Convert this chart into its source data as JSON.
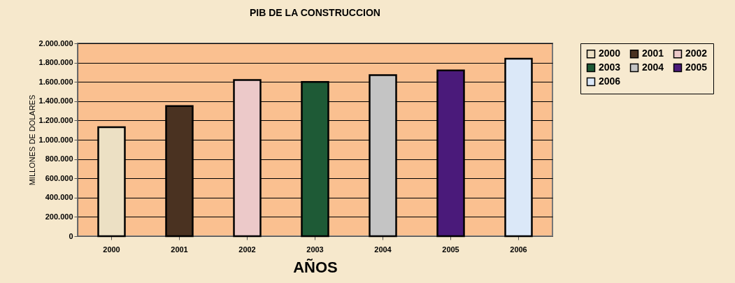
{
  "chart_data": {
    "type": "bar",
    "title": "PIB DE LA CONSTRUCCION",
    "xlabel": "AÑOS",
    "ylabel": "MILLONES DE DOLARES",
    "categories": [
      "2000",
      "2001",
      "2002",
      "2003",
      "2004",
      "2005",
      "2006"
    ],
    "series": [
      {
        "name": "2000",
        "color": "#ece0c4",
        "values": [
          1130000,
          null,
          null,
          null,
          null,
          null,
          null
        ]
      },
      {
        "name": "2001",
        "color": "#4a3221",
        "values": [
          null,
          1350000,
          null,
          null,
          null,
          null,
          null
        ]
      },
      {
        "name": "2002",
        "color": "#ecc9c9",
        "values": [
          null,
          null,
          1620000,
          null,
          null,
          null,
          null
        ]
      },
      {
        "name": "2003",
        "color": "#1e5a36",
        "values": [
          null,
          null,
          null,
          1600000,
          null,
          null,
          null
        ]
      },
      {
        "name": "2004",
        "color": "#c4c4c4",
        "values": [
          null,
          null,
          null,
          null,
          1670000,
          null,
          null
        ]
      },
      {
        "name": "2005",
        "color": "#4a1a7a",
        "values": [
          null,
          null,
          null,
          null,
          null,
          1720000,
          null
        ]
      },
      {
        "name": "2006",
        "color": "#dbe8f8",
        "values": [
          null,
          null,
          null,
          null,
          null,
          null,
          1840000
        ]
      }
    ],
    "ylim": [
      0,
      2000000
    ],
    "yticks": [
      {
        "value": 0,
        "label": "0"
      },
      {
        "value": 200000,
        "label": "200.000"
      },
      {
        "value": 400000,
        "label": "400.000"
      },
      {
        "value": 600000,
        "label": "600.000"
      },
      {
        "value": 800000,
        "label": "800.000"
      },
      {
        "value": 1000000,
        "label": "1.000.000"
      },
      {
        "value": 1200000,
        "label": "1.200.000"
      },
      {
        "value": 1400000,
        "label": "1.400.000"
      },
      {
        "value": 1600000,
        "label": "1.600.000"
      },
      {
        "value": 1800000,
        "label": "1.800.000"
      },
      {
        "value": 2000000,
        "label": "2.000.000"
      }
    ],
    "grid": "y",
    "legend": "right"
  }
}
